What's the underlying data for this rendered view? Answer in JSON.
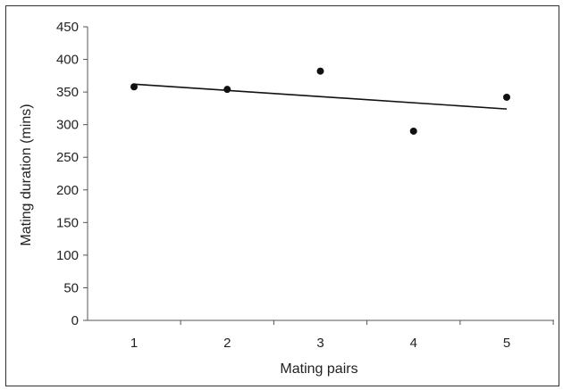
{
  "chart_data": {
    "type": "scatter",
    "title": "",
    "xlabel": "Mating pairs",
    "ylabel": "Mating duration  (mins)",
    "categories": [
      "1",
      "2",
      "3",
      "4",
      "5"
    ],
    "x": [
      1,
      2,
      3,
      4,
      5
    ],
    "series": [
      {
        "values": [
          358,
          354,
          382,
          290,
          342
        ],
        "color": "#111111",
        "marker": "circle"
      }
    ],
    "trendline": {
      "type": "linear",
      "start": [
        1,
        362
      ],
      "end": [
        5,
        324
      ],
      "color": "#111111"
    },
    "ylim": [
      0,
      450
    ],
    "yticks": [
      0,
      50,
      100,
      150,
      200,
      250,
      300,
      350,
      400,
      450
    ],
    "grid": false,
    "legend": "none"
  }
}
